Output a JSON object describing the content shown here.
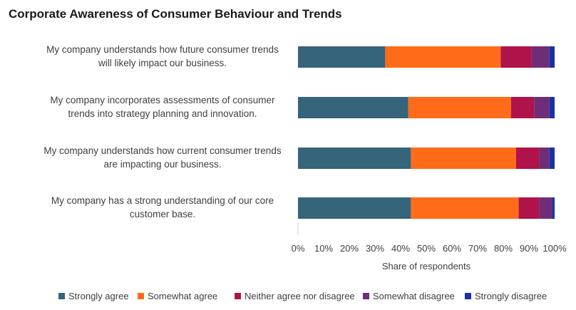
{
  "chart_data": {
    "type": "bar",
    "orientation": "horizontal",
    "stacked": true,
    "title": "Corporate Awareness of Consumer Behaviour and Trends",
    "xlabel": "Share of respondents",
    "ylabel": "",
    "xlim": [
      0,
      100
    ],
    "xticks": [
      "0%",
      "10%",
      "20%",
      "30%",
      "40%",
      "50%",
      "60%",
      "70%",
      "80%",
      "90%",
      "100%"
    ],
    "grid": false,
    "legend_position": "bottom",
    "categories": [
      [
        "My company understands how future consumer trends",
        "will likely impact our business."
      ],
      [
        "My company incorporates assessments of consumer",
        "trends into strategy planning and innovation."
      ],
      [
        "My company understands how current consumer trends",
        "are impacting our business."
      ],
      [
        "My company has a strong understanding of our core",
        "customer base."
      ]
    ],
    "series": [
      {
        "name": "Strongly agree",
        "color": "#35647b",
        "values": [
          34,
          43,
          44,
          44
        ]
      },
      {
        "name": "Somewhat agree",
        "color": "#ff6b18",
        "values": [
          45,
          40,
          41,
          42
        ]
      },
      {
        "name": "Neither agree nor disagree",
        "color": "#b0124a",
        "values": [
          12,
          9,
          9,
          8
        ]
      },
      {
        "name": "Somewhat disagree",
        "color": "#6f2d77",
        "values": [
          7,
          6,
          4,
          5
        ]
      },
      {
        "name": "Strongly disagree",
        "color": "#1b2fa8",
        "values": [
          2,
          2,
          2,
          1
        ]
      }
    ]
  }
}
